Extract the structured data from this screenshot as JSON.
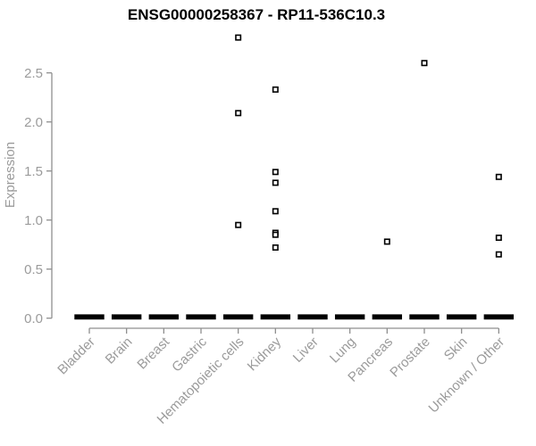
{
  "chart_data": {
    "type": "scatter",
    "subtype": "boxplot-outliers",
    "title": "ENSG00000258367 - RP11-536C10.3",
    "ylabel": "Expression",
    "xlabel": "",
    "ylim": [
      0,
      2.9
    ],
    "yticks": [
      0.0,
      0.5,
      1.0,
      1.5,
      2.0,
      2.5
    ],
    "ytick_labels": [
      "0.0",
      "0.5",
      "1.0",
      "1.5",
      "2.0",
      "2.5"
    ],
    "grid": false,
    "legend": null,
    "marker": "open-square",
    "categories": [
      "Bladder",
      "Brain",
      "Breast",
      "Gastric",
      "Hematopoietic cells",
      "Kidney",
      "Liver",
      "Lung",
      "Pancreas",
      "Prostate",
      "Skin",
      "Unknown / Other"
    ],
    "medians": [
      0,
      0,
      0,
      0,
      0,
      0,
      0,
      0,
      0,
      0,
      0,
      0
    ],
    "outliers": {
      "Bladder": [],
      "Brain": [],
      "Breast": [],
      "Gastric": [],
      "Hematopoietic cells": [
        2.86,
        2.09,
        0.95
      ],
      "Kidney": [
        2.33,
        1.49,
        1.38,
        1.09,
        0.87,
        0.85,
        0.72
      ],
      "Liver": [],
      "Lung": [],
      "Pancreas": [
        0.78
      ],
      "Prostate": [
        2.6
      ],
      "Skin": [],
      "Unknown / Other": [
        1.44,
        0.82,
        0.65
      ]
    },
    "colors": {
      "marker_stroke": "#000000",
      "marker_fill": "#ffffff",
      "median_bar": "#000000",
      "axis_line": "#8f8f8f",
      "tick_text": "#9b9b9b",
      "title_text": "#000000",
      "background": "#ffffff"
    }
  }
}
